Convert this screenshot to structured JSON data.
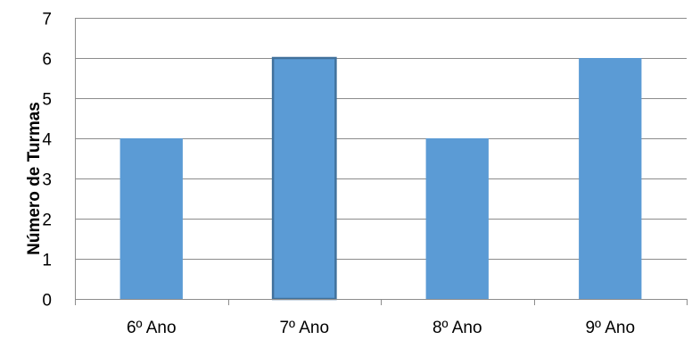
{
  "chart_data": {
    "type": "bar",
    "title": "",
    "xlabel": "",
    "ylabel": "Número de Turmas",
    "categories": [
      "6º Ano",
      "7º Ano",
      "8º Ano",
      "9º Ano"
    ],
    "values": [
      4,
      6,
      4,
      6
    ],
    "ylim": [
      0,
      7
    ],
    "yticks": [
      0,
      1,
      2,
      3,
      4,
      5,
      6,
      7
    ],
    "grid": true,
    "legend": "none",
    "highlighted_bar": "7º Ano",
    "colors": {
      "bar": "#5b9bd5",
      "bar_highlight_border": "#41719c",
      "grid": "#8c8c8c",
      "text": "#000000"
    }
  }
}
